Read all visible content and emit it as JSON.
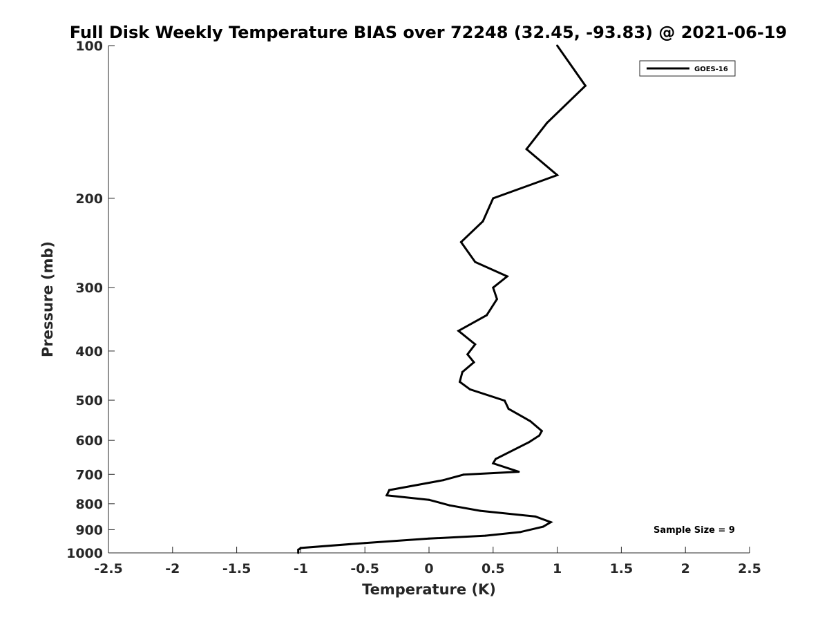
{
  "chart_data": {
    "type": "line",
    "title": "Full Disk Weekly Temperature BIAS over 72248 (32.45, -93.83) @ 2021-06-19",
    "xlabel": "Temperature (K)",
    "ylabel": "Pressure (mb)",
    "xlim": [
      -2.5,
      2.5
    ],
    "ylim": [
      100,
      1000
    ],
    "y_scale": "log",
    "y_reversed": true,
    "grid": false,
    "legend_position": "top-right",
    "x_ticks": [
      "-2.5",
      "-2",
      "-1.5",
      "-1",
      "-0.5",
      "0",
      "0.5",
      "1",
      "1.5",
      "2",
      "2.5"
    ],
    "y_ticks": [
      "100",
      "200",
      "300",
      "400",
      "500",
      "600",
      "700",
      "800",
      "900",
      "1000"
    ],
    "series": [
      {
        "name": "GOES-16",
        "color": "#000000",
        "points": [
          {
            "x": 1.0,
            "y": 100
          },
          {
            "x": 1.22,
            "y": 120
          },
          {
            "x": 0.92,
            "y": 142
          },
          {
            "x": 0.76,
            "y": 160
          },
          {
            "x": 1.0,
            "y": 180
          },
          {
            "x": 0.5,
            "y": 200
          },
          {
            "x": 0.42,
            "y": 222
          },
          {
            "x": 0.25,
            "y": 244
          },
          {
            "x": 0.36,
            "y": 267
          },
          {
            "x": 0.61,
            "y": 285
          },
          {
            "x": 0.5,
            "y": 300
          },
          {
            "x": 0.53,
            "y": 316
          },
          {
            "x": 0.45,
            "y": 340
          },
          {
            "x": 0.23,
            "y": 365
          },
          {
            "x": 0.36,
            "y": 388
          },
          {
            "x": 0.3,
            "y": 406
          },
          {
            "x": 0.35,
            "y": 421
          },
          {
            "x": 0.26,
            "y": 440
          },
          {
            "x": 0.24,
            "y": 460
          },
          {
            "x": 0.32,
            "y": 476
          },
          {
            "x": 0.59,
            "y": 501
          },
          {
            "x": 0.62,
            "y": 520
          },
          {
            "x": 0.79,
            "y": 550
          },
          {
            "x": 0.88,
            "y": 575
          },
          {
            "x": 0.86,
            "y": 587
          },
          {
            "x": 0.78,
            "y": 605
          },
          {
            "x": 0.52,
            "y": 653
          },
          {
            "x": 0.5,
            "y": 666
          },
          {
            "x": 0.7,
            "y": 692
          },
          {
            "x": 0.27,
            "y": 701
          },
          {
            "x": 0.11,
            "y": 719
          },
          {
            "x": -0.31,
            "y": 752
          },
          {
            "x": -0.33,
            "y": 770
          },
          {
            "x": 0.0,
            "y": 786
          },
          {
            "x": 0.16,
            "y": 806
          },
          {
            "x": 0.4,
            "y": 826
          },
          {
            "x": 0.83,
            "y": 848
          },
          {
            "x": 0.95,
            "y": 870
          },
          {
            "x": 0.89,
            "y": 888
          },
          {
            "x": 0.71,
            "y": 910
          },
          {
            "x": 0.44,
            "y": 925
          },
          {
            "x": 0.0,
            "y": 937
          },
          {
            "x": -0.5,
            "y": 956
          },
          {
            "x": -1.0,
            "y": 978
          },
          {
            "x": -1.02,
            "y": 986
          },
          {
            "x": -1.02,
            "y": 1000
          }
        ]
      }
    ],
    "annotations": [
      "Sample Size = 9"
    ]
  }
}
